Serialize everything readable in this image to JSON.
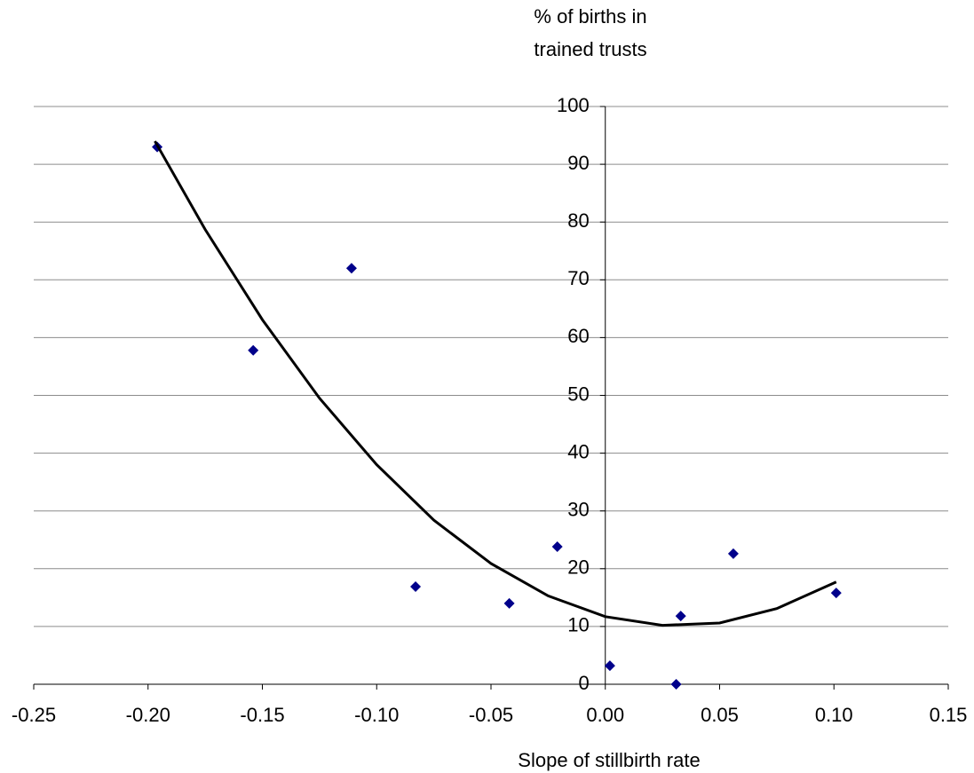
{
  "chart_data": {
    "type": "scatter",
    "ylabel": [
      "% of births in",
      "trained trusts"
    ],
    "xlabel": "Slope of stillbirth rate",
    "xlim": [
      -0.25,
      0.15
    ],
    "xticks": [
      {
        "value": -0.25,
        "label": "-0.25"
      },
      {
        "value": -0.2,
        "label": "-0.20"
      },
      {
        "value": -0.15,
        "label": "-0.15"
      },
      {
        "value": -0.1,
        "label": "-0.10"
      },
      {
        "value": -0.05,
        "label": "-0.05"
      },
      {
        "value": 0,
        "label": "0.00"
      },
      {
        "value": 0.05,
        "label": "0.05"
      },
      {
        "value": 0.1,
        "label": "0.10"
      },
      {
        "value": 0.15,
        "label": "0.15"
      }
    ],
    "ylim": [
      0,
      100
    ],
    "yticks": [
      0,
      10,
      20,
      30,
      40,
      50,
      60,
      70,
      80,
      90,
      100
    ],
    "grid": true,
    "series": [
      {
        "color": "#00008b",
        "marker": "diamond",
        "x": [
          -0.196,
          -0.154,
          -0.111,
          -0.083,
          -0.042,
          -0.021,
          0.002,
          0.031,
          0.033,
          0.056,
          0.101
        ],
        "values": [
          93,
          57.8,
          72,
          16.9,
          14,
          23.8,
          3.2,
          0,
          11.8,
          22.6,
          15.8
        ]
      },
      {
        "color": "#000000",
        "marker": "line",
        "x": [
          -0.197,
          -0.175,
          -0.15,
          -0.125,
          -0.1,
          -0.075,
          -0.05,
          -0.025,
          0,
          0.025,
          0.05,
          0.075,
          0.101
        ],
        "values": [
          94.0,
          78.7,
          63.1,
          49.5,
          38.0,
          28.4,
          20.9,
          15.3,
          11.7,
          10.2,
          10.6,
          13.1,
          17.7
        ]
      }
    ]
  }
}
